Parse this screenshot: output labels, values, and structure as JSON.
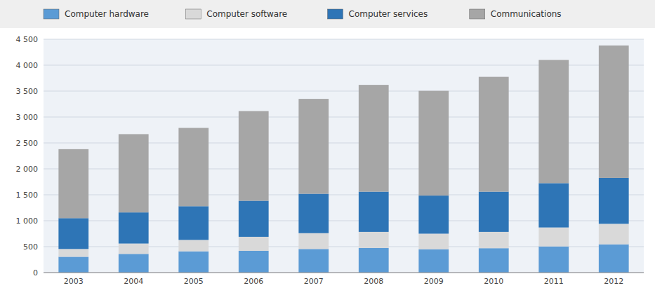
{
  "chart_data": {
    "type": "bar",
    "stacked": true,
    "categories": [
      "2003",
      "2004",
      "2005",
      "2006",
      "2007",
      "2008",
      "2009",
      "2010",
      "2011",
      "2012"
    ],
    "series": [
      {
        "name": "Computer hardware",
        "color": "#5b9bd5",
        "values": [
          305,
          360,
          410,
          420,
          455,
          475,
          450,
          470,
          505,
          545
        ]
      },
      {
        "name": "Computer software",
        "color": "#d9d9d9",
        "values": [
          150,
          200,
          220,
          270,
          305,
          310,
          300,
          315,
          365,
          395
        ]
      },
      {
        "name": "Computer services",
        "color": "#2e75b6",
        "values": [
          595,
          600,
          650,
          695,
          760,
          775,
          735,
          775,
          855,
          885
        ]
      },
      {
        "name": "Communications",
        "color": "#a6a6a6",
        "values": [
          1330,
          1510,
          1510,
          1730,
          1830,
          2060,
          2020,
          2215,
          2375,
          2555
        ]
      }
    ],
    "ylim": [
      0,
      4500
    ],
    "yticks": [
      0,
      500,
      {
        "value": 1000,
        "label": "1 000"
      },
      {
        "value": 1500,
        "label": "1 500"
      },
      {
        "value": 2000,
        "label": "2 000"
      },
      {
        "value": 2500,
        "label": "2 500"
      },
      {
        "value": 3000,
        "label": "3 000"
      },
      {
        "value": 3500,
        "label": "3 500"
      },
      {
        "value": 4000,
        "label": "4 000"
      },
      {
        "value": 4500,
        "label": "4 500"
      }
    ],
    "grid": true,
    "legend": "top"
  }
}
